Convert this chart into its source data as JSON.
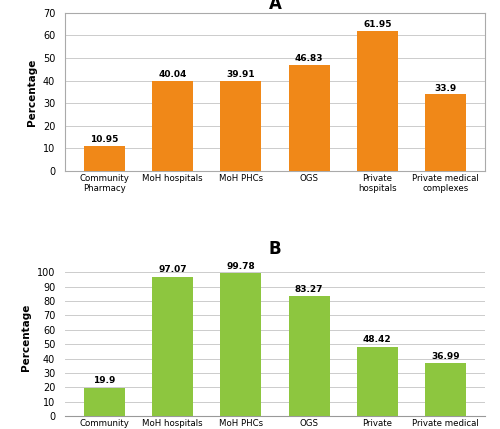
{
  "categories": [
    "Community\nPharmacy",
    "MoH hospitals",
    "MoH PHCs",
    "OGS",
    "Private\nhospitals",
    "Private medical\ncomplexes"
  ],
  "values_A": [
    10.95,
    40.04,
    39.91,
    46.83,
    61.95,
    33.9
  ],
  "values_B": [
    19.9,
    97.07,
    99.78,
    83.27,
    48.42,
    36.99
  ],
  "color_A": "#F08818",
  "color_B": "#8DC63F",
  "title_A": "A",
  "title_B": "B",
  "ylabel": "Percentage",
  "ylim_A": [
    0,
    70
  ],
  "ylim_B": [
    0,
    110
  ],
  "yticks_A": [
    0,
    10,
    20,
    30,
    40,
    50,
    60,
    70
  ],
  "yticks_B": [
    0,
    10,
    20,
    30,
    40,
    50,
    60,
    70,
    80,
    90,
    100
  ],
  "background_color": "#ffffff",
  "panel_background": "#ffffff",
  "grid_color": "#cccccc"
}
